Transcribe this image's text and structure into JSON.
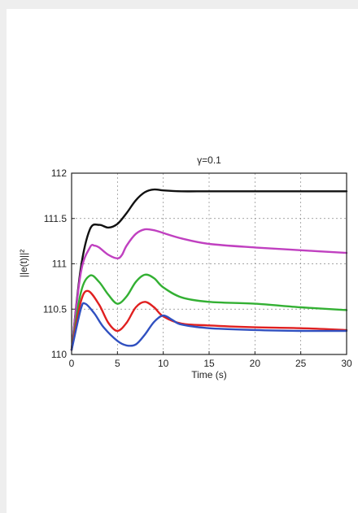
{
  "chart_data": {
    "type": "line",
    "title": "γ=0.1",
    "xlabel": "Time (s)",
    "ylabel": "||e(t)||²",
    "xlim": [
      0,
      30
    ],
    "ylim": [
      110,
      112
    ],
    "x_ticks": [
      "0",
      "5",
      "10",
      "15",
      "20",
      "25",
      "30"
    ],
    "y_ticks": [
      "110",
      "110.5",
      "111",
      "111.5",
      "112"
    ],
    "grid": true,
    "series": [
      {
        "color": "#111111",
        "x": [
          0,
          1,
          2,
          3,
          4,
          5,
          6,
          7,
          8,
          9,
          10,
          12,
          15,
          20,
          25,
          30
        ],
        "values": [
          110.05,
          110.95,
          111.38,
          111.43,
          111.4,
          111.44,
          111.56,
          111.7,
          111.79,
          111.82,
          111.81,
          111.8,
          111.8,
          111.8,
          111.8,
          111.8
        ]
      },
      {
        "color": "#c040c0",
        "x": [
          0,
          1,
          2,
          2.5,
          3,
          4,
          5,
          5.5,
          6,
          7,
          8,
          9,
          10,
          12,
          15,
          20,
          25,
          30
        ],
        "values": [
          110.05,
          110.9,
          111.18,
          111.2,
          111.18,
          111.1,
          111.06,
          111.1,
          111.2,
          111.33,
          111.38,
          111.37,
          111.34,
          111.28,
          111.22,
          111.18,
          111.15,
          111.12
        ]
      },
      {
        "color": "#33b033",
        "x": [
          0,
          1,
          2,
          3,
          4,
          5,
          6,
          7,
          8,
          9,
          10,
          12,
          15,
          20,
          25,
          30
        ],
        "values": [
          110.05,
          110.68,
          110.87,
          110.8,
          110.66,
          110.56,
          110.64,
          110.8,
          110.88,
          110.84,
          110.74,
          110.63,
          110.58,
          110.56,
          110.52,
          110.49
        ]
      },
      {
        "color": "#e02020",
        "x": [
          0,
          1,
          1.8,
          3,
          4,
          5,
          6,
          7,
          8,
          9,
          10,
          12,
          15,
          20,
          25,
          30
        ],
        "values": [
          110.05,
          110.58,
          110.7,
          110.55,
          110.35,
          110.26,
          110.35,
          110.52,
          110.58,
          110.52,
          110.42,
          110.34,
          110.32,
          110.3,
          110.29,
          110.27
        ]
      },
      {
        "color": "#3050c0",
        "x": [
          0,
          1,
          1.5,
          2.5,
          3.5,
          5,
          6,
          7,
          8,
          9,
          10,
          11,
          12,
          15,
          20,
          25,
          30
        ],
        "values": [
          110.05,
          110.5,
          110.56,
          110.45,
          110.3,
          110.15,
          110.1,
          110.11,
          110.22,
          110.36,
          110.43,
          110.38,
          110.33,
          110.29,
          110.27,
          110.26,
          110.26
        ]
      }
    ]
  }
}
